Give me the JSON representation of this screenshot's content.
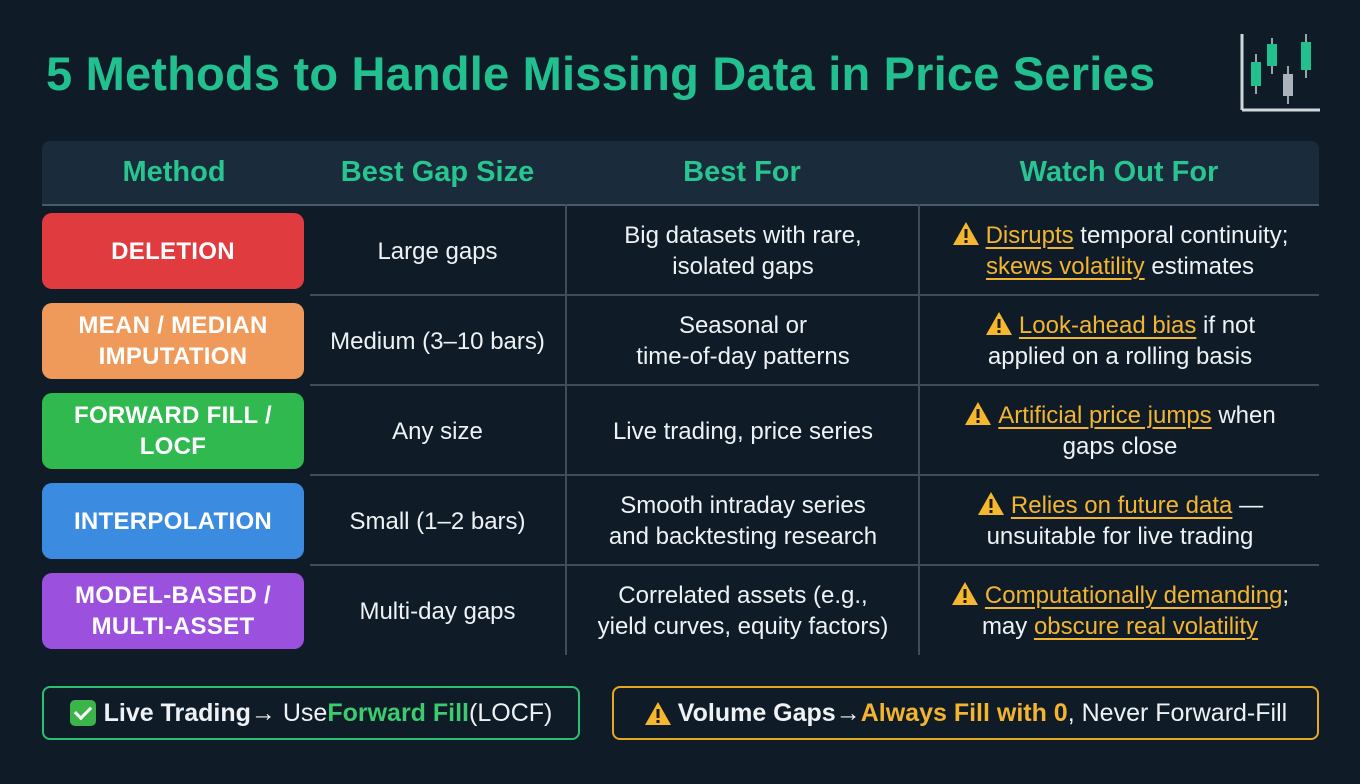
{
  "title": "5 Methods to Handle Missing Data in Price Series",
  "colors": {
    "accent": "#22c08f",
    "warning": "#f2b431",
    "deletion": "#e03b3f",
    "mean_median": "#ef9a5a",
    "forward_fill": "#2fb94f",
    "interpolation": "#3b8ce0",
    "model_based": "#9b51dd"
  },
  "table": {
    "headers": [
      "Method",
      "Best Gap Size",
      "Best For",
      "Watch Out For"
    ],
    "rows": [
      {
        "method_line1": "DELETION",
        "method_line2": "",
        "gap": "Large gaps",
        "best_for_line1": "Big datasets with rare,",
        "best_for_line2": "isolated gaps",
        "warn": {
          "icon": "warning-icon",
          "k1": "Disrupts",
          "t1": " temporal continuity;",
          "k2": "skews volatility",
          "t2": " estimates"
        }
      },
      {
        "method_line1": "MEAN / MEDIAN",
        "method_line2": "IMPUTATION",
        "gap": "Medium (3–10 bars)",
        "best_for_line1": "Seasonal or",
        "best_for_line2": "time-of-day patterns",
        "warn": {
          "icon": "warning-icon",
          "k1": "Look-ahead bias",
          "t1": " if not",
          "line2": "applied on a rolling basis"
        }
      },
      {
        "method_line1": "FORWARD FILL /",
        "method_line2": "LOCF",
        "gap": "Any size",
        "best_for_line1": "Live trading, price series",
        "best_for_line2": "",
        "warn": {
          "icon": "warning-icon",
          "k1": "Artificial price jumps",
          "t1": " when",
          "line2": "gaps close"
        }
      },
      {
        "method_line1": "INTERPOLATION",
        "method_line2": "",
        "gap": "Small (1–2 bars)",
        "best_for_line1": "Smooth intraday series",
        "best_for_line2": "and backtesting research",
        "warn": {
          "icon": "warning-icon",
          "k1": "Relies on future data",
          "t1": " —",
          "line2": "unsuitable for live trading"
        }
      },
      {
        "method_line1": "MODEL-BASED /",
        "method_line2": "MULTI-ASSET",
        "gap": "Multi-day gaps",
        "best_for_line1": "Correlated assets (e.g.,",
        "best_for_line2": "yield curves, equity factors)",
        "warn": {
          "icon": "warning-icon",
          "k1": "Computationally demanding",
          "t1": ";",
          "pre2": "may ",
          "k2": "obscure real volatility"
        }
      }
    ]
  },
  "notes": {
    "live": {
      "icon": "check-icon",
      "b1": "Live Trading",
      "t1": " → Use ",
      "hl": "Forward Fill",
      "t2": " (LOCF)"
    },
    "volume": {
      "icon": "warning-icon",
      "b1": "Volume Gaps",
      "t1": " → ",
      "hl": "Always Fill with 0",
      "t2": ", Never Forward-Fill"
    }
  }
}
